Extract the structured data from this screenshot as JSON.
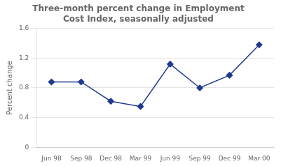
{
  "chart_data": {
    "type": "line",
    "title": "Three-month percent change in Employment\nCost Index, seasonally adjusted",
    "ylabel": "Percent change",
    "categories": [
      "Jun 98",
      "Sep 98",
      "Dec 98",
      "Mar 99",
      "Jun 99",
      "Sep 99",
      "Dec 99",
      "Mar 00"
    ],
    "values": [
      0.88,
      0.88,
      0.62,
      0.55,
      1.12,
      0.8,
      0.97,
      1.38
    ],
    "color": "#1F3A8F",
    "marker": "diamond",
    "ylim": [
      0,
      1.6
    ],
    "yticks": [
      0,
      0.4,
      0.8,
      1.2,
      1.6
    ],
    "grid": "y"
  }
}
